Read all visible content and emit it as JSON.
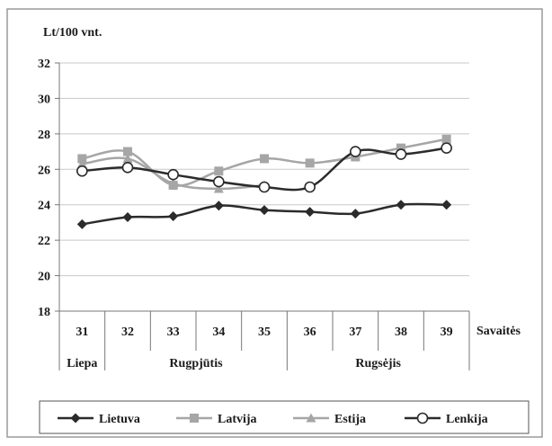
{
  "chart_data": {
    "type": "line",
    "title": "",
    "ylabel": "Lt/100 vnt.",
    "xlabel": "Savaitės",
    "ylim": [
      18,
      32
    ],
    "yticks": [
      18,
      20,
      22,
      24,
      26,
      28,
      30,
      32
    ],
    "categories": [
      "31",
      "32",
      "33",
      "34",
      "35",
      "36",
      "37",
      "38",
      "39"
    ],
    "months": [
      {
        "label": "Liepa",
        "span": 1
      },
      {
        "label": "Rugpjūtis",
        "span": 4
      },
      {
        "label": "Rugsėjis",
        "span": 4
      }
    ],
    "grid": "horizontal",
    "legend_position": "bottom",
    "series": [
      {
        "name": "Lietuva",
        "color": "#2b2b2b",
        "marker": "diamond",
        "values": [
          22.9,
          23.3,
          23.35,
          23.95,
          23.7,
          23.6,
          23.5,
          24.0,
          24.0
        ]
      },
      {
        "name": "Latvija",
        "color": "#a6a6a6",
        "marker": "square",
        "values": [
          26.6,
          27.0,
          25.1,
          25.9,
          26.6,
          26.35,
          26.7,
          27.2,
          27.7
        ]
      },
      {
        "name": "Estija",
        "color": "#a6a6a6",
        "marker": "triangle",
        "values": [
          26.3,
          26.6,
          25.2,
          24.9,
          25.1,
          null,
          null,
          null,
          null
        ]
      },
      {
        "name": "Lenkija",
        "color": "#2b2b2b",
        "marker": "circle",
        "values": [
          25.9,
          26.1,
          25.7,
          25.3,
          25.0,
          25.0,
          27.0,
          26.85,
          27.2
        ]
      }
    ]
  }
}
